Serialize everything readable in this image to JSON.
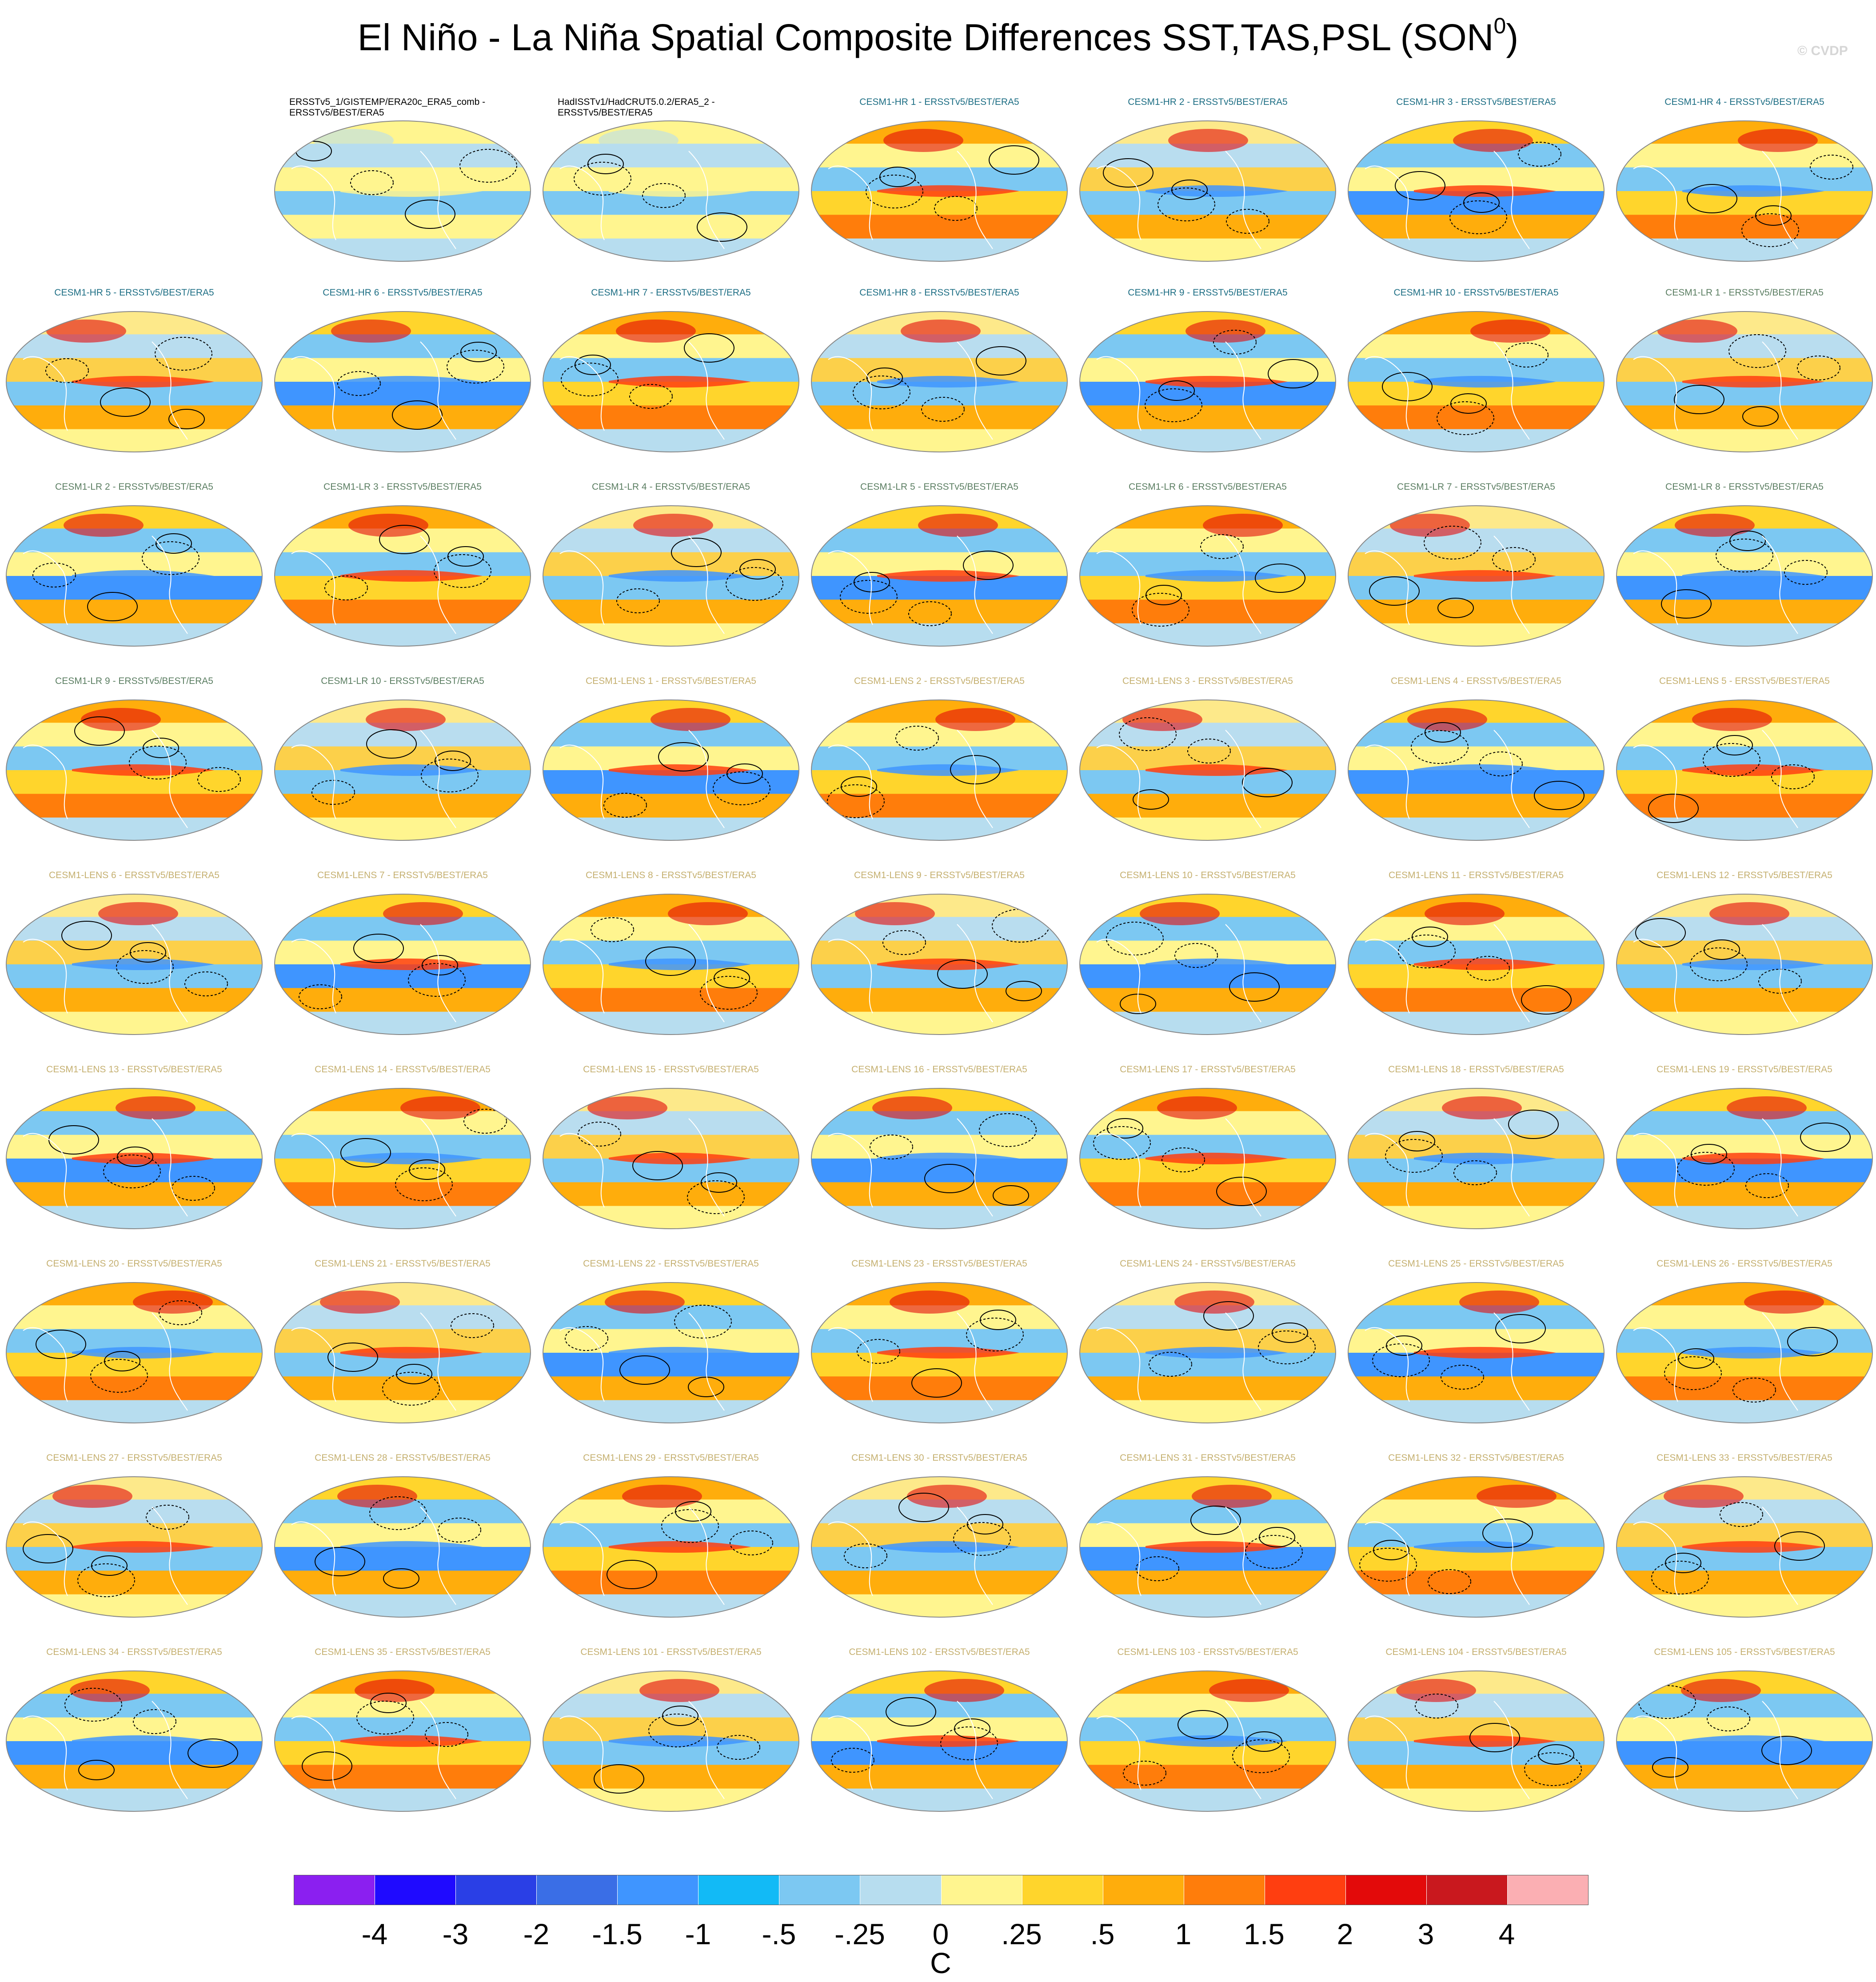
{
  "header": {
    "title": "El Niño - La Niña Spatial Composite Differences SST,TAS,PSL (SON",
    "title_superscript": "0",
    "title_close": ")",
    "watermark": "© CVDP"
  },
  "colors": {
    "observation_caption": "#000000",
    "cesm1_hr_caption": "#1d6e84",
    "cesm1_lr_caption": "#5b7e62",
    "cesm1_lens_caption": "#c5b070",
    "coastline": "#ffffff",
    "contour": "#000000"
  },
  "panels": [
    {
      "title": "ERSSTv5_1/GISTEMP/ERA20c_ERA5_comb - ERSSTv5/BEST/ERA5",
      "group": "obs"
    },
    {
      "title": "HadISSTv1/HadCRUT5.0.2/ERA5_2 - ERSSTv5/BEST/ERA5",
      "group": "obs"
    },
    {
      "title": "CESM1-HR 1 - ERSSTv5/BEST/ERA5",
      "group": "hr"
    },
    {
      "title": "CESM1-HR 2 - ERSSTv5/BEST/ERA5",
      "group": "hr"
    },
    {
      "title": "CESM1-HR 3 - ERSSTv5/BEST/ERA5",
      "group": "hr"
    },
    {
      "title": "CESM1-HR 4 - ERSSTv5/BEST/ERA5",
      "group": "hr"
    },
    {
      "title": "CESM1-HR 5 - ERSSTv5/BEST/ERA5",
      "group": "hr"
    },
    {
      "title": "CESM1-HR 6 - ERSSTv5/BEST/ERA5",
      "group": "hr"
    },
    {
      "title": "CESM1-HR 7 - ERSSTv5/BEST/ERA5",
      "group": "hr"
    },
    {
      "title": "CESM1-HR 8 - ERSSTv5/BEST/ERA5",
      "group": "hr"
    },
    {
      "title": "CESM1-HR 9 - ERSSTv5/BEST/ERA5",
      "group": "hr"
    },
    {
      "title": "CESM1-HR 10 - ERSSTv5/BEST/ERA5",
      "group": "hr"
    },
    {
      "title": "CESM1-LR 1 - ERSSTv5/BEST/ERA5",
      "group": "lr"
    },
    {
      "title": "CESM1-LR 2 - ERSSTv5/BEST/ERA5",
      "group": "lr"
    },
    {
      "title": "CESM1-LR 3 - ERSSTv5/BEST/ERA5",
      "group": "lr"
    },
    {
      "title": "CESM1-LR 4 - ERSSTv5/BEST/ERA5",
      "group": "lr"
    },
    {
      "title": "CESM1-LR 5 - ERSSTv5/BEST/ERA5",
      "group": "lr"
    },
    {
      "title": "CESM1-LR 6 - ERSSTv5/BEST/ERA5",
      "group": "lr"
    },
    {
      "title": "CESM1-LR 7 - ERSSTv5/BEST/ERA5",
      "group": "lr"
    },
    {
      "title": "CESM1-LR 8 - ERSSTv5/BEST/ERA5",
      "group": "lr"
    },
    {
      "title": "CESM1-LR 9 - ERSSTv5/BEST/ERA5",
      "group": "lr"
    },
    {
      "title": "CESM1-LR 10 - ERSSTv5/BEST/ERA5",
      "group": "lr"
    },
    {
      "title": "CESM1-LENS 1 - ERSSTv5/BEST/ERA5",
      "group": "lens"
    },
    {
      "title": "CESM1-LENS 2 - ERSSTv5/BEST/ERA5",
      "group": "lens"
    },
    {
      "title": "CESM1-LENS 3 - ERSSTv5/BEST/ERA5",
      "group": "lens"
    },
    {
      "title": "CESM1-LENS 4 - ERSSTv5/BEST/ERA5",
      "group": "lens"
    },
    {
      "title": "CESM1-LENS 5 - ERSSTv5/BEST/ERA5",
      "group": "lens"
    },
    {
      "title": "CESM1-LENS 6 - ERSSTv5/BEST/ERA5",
      "group": "lens"
    },
    {
      "title": "CESM1-LENS 7 - ERSSTv5/BEST/ERA5",
      "group": "lens"
    },
    {
      "title": "CESM1-LENS 8 - ERSSTv5/BEST/ERA5",
      "group": "lens"
    },
    {
      "title": "CESM1-LENS 9 - ERSSTv5/BEST/ERA5",
      "group": "lens"
    },
    {
      "title": "CESM1-LENS 10 - ERSSTv5/BEST/ERA5",
      "group": "lens"
    },
    {
      "title": "CESM1-LENS 11 - ERSSTv5/BEST/ERA5",
      "group": "lens"
    },
    {
      "title": "CESM1-LENS 12 - ERSSTv5/BEST/ERA5",
      "group": "lens"
    },
    {
      "title": "CESM1-LENS 13 - ERSSTv5/BEST/ERA5",
      "group": "lens"
    },
    {
      "title": "CESM1-LENS 14 - ERSSTv5/BEST/ERA5",
      "group": "lens"
    },
    {
      "title": "CESM1-LENS 15 - ERSSTv5/BEST/ERA5",
      "group": "lens"
    },
    {
      "title": "CESM1-LENS 16 - ERSSTv5/BEST/ERA5",
      "group": "lens"
    },
    {
      "title": "CESM1-LENS 17 - ERSSTv5/BEST/ERA5",
      "group": "lens"
    },
    {
      "title": "CESM1-LENS 18 - ERSSTv5/BEST/ERA5",
      "group": "lens"
    },
    {
      "title": "CESM1-LENS 19 - ERSSTv5/BEST/ERA5",
      "group": "lens"
    },
    {
      "title": "CESM1-LENS 20 - ERSSTv5/BEST/ERA5",
      "group": "lens"
    },
    {
      "title": "CESM1-LENS 21 - ERSSTv5/BEST/ERA5",
      "group": "lens"
    },
    {
      "title": "CESM1-LENS 22 - ERSSTv5/BEST/ERA5",
      "group": "lens"
    },
    {
      "title": "CESM1-LENS 23 - ERSSTv5/BEST/ERA5",
      "group": "lens"
    },
    {
      "title": "CESM1-LENS 24 - ERSSTv5/BEST/ERA5",
      "group": "lens"
    },
    {
      "title": "CESM1-LENS 25 - ERSSTv5/BEST/ERA5",
      "group": "lens"
    },
    {
      "title": "CESM1-LENS 26 - ERSSTv5/BEST/ERA5",
      "group": "lens"
    },
    {
      "title": "CESM1-LENS 27 - ERSSTv5/BEST/ERA5",
      "group": "lens"
    },
    {
      "title": "CESM1-LENS 28 - ERSSTv5/BEST/ERA5",
      "group": "lens"
    },
    {
      "title": "CESM1-LENS 29 - ERSSTv5/BEST/ERA5",
      "group": "lens"
    },
    {
      "title": "CESM1-LENS 30 - ERSSTv5/BEST/ERA5",
      "group": "lens"
    },
    {
      "title": "CESM1-LENS 31 - ERSSTv5/BEST/ERA5",
      "group": "lens"
    },
    {
      "title": "CESM1-LENS 32 - ERSSTv5/BEST/ERA5",
      "group": "lens"
    },
    {
      "title": "CESM1-LENS 33 - ERSSTv5/BEST/ERA5",
      "group": "lens"
    },
    {
      "title": "CESM1-LENS 34 - ERSSTv5/BEST/ERA5",
      "group": "lens"
    },
    {
      "title": "CESM1-LENS 35 - ERSSTv5/BEST/ERA5",
      "group": "lens"
    },
    {
      "title": "CESM1-LENS 101 - ERSSTv5/BEST/ERA5",
      "group": "lens"
    },
    {
      "title": "CESM1-LENS 102 - ERSSTv5/BEST/ERA5",
      "group": "lens"
    },
    {
      "title": "CESM1-LENS 103 - ERSSTv5/BEST/ERA5",
      "group": "lens"
    },
    {
      "title": "CESM1-LENS 104 - ERSSTv5/BEST/ERA5",
      "group": "lens"
    },
    {
      "title": "CESM1-LENS 105 - ERSSTv5/BEST/ERA5",
      "group": "lens"
    }
  ],
  "colorbar": {
    "colors": [
      "#8b1ff0",
      "#1f0aff",
      "#2a3fe6",
      "#3a6ee6",
      "#3f95ff",
      "#12baf6",
      "#7cc8f2",
      "#b7ddef",
      "#fff58f",
      "#ffd52c",
      "#ffad0c",
      "#ff7d0b",
      "#ff3e10",
      "#e30a0a",
      "#c9181e",
      "#fbafb3"
    ],
    "tick_labels": [
      "-4",
      "-3",
      "-2",
      "-1.5",
      "-1",
      "-.5",
      "-.25",
      "0",
      ".25",
      ".5",
      "1",
      "1.5",
      "2",
      "3",
      "4"
    ],
    "unit": "C"
  }
}
